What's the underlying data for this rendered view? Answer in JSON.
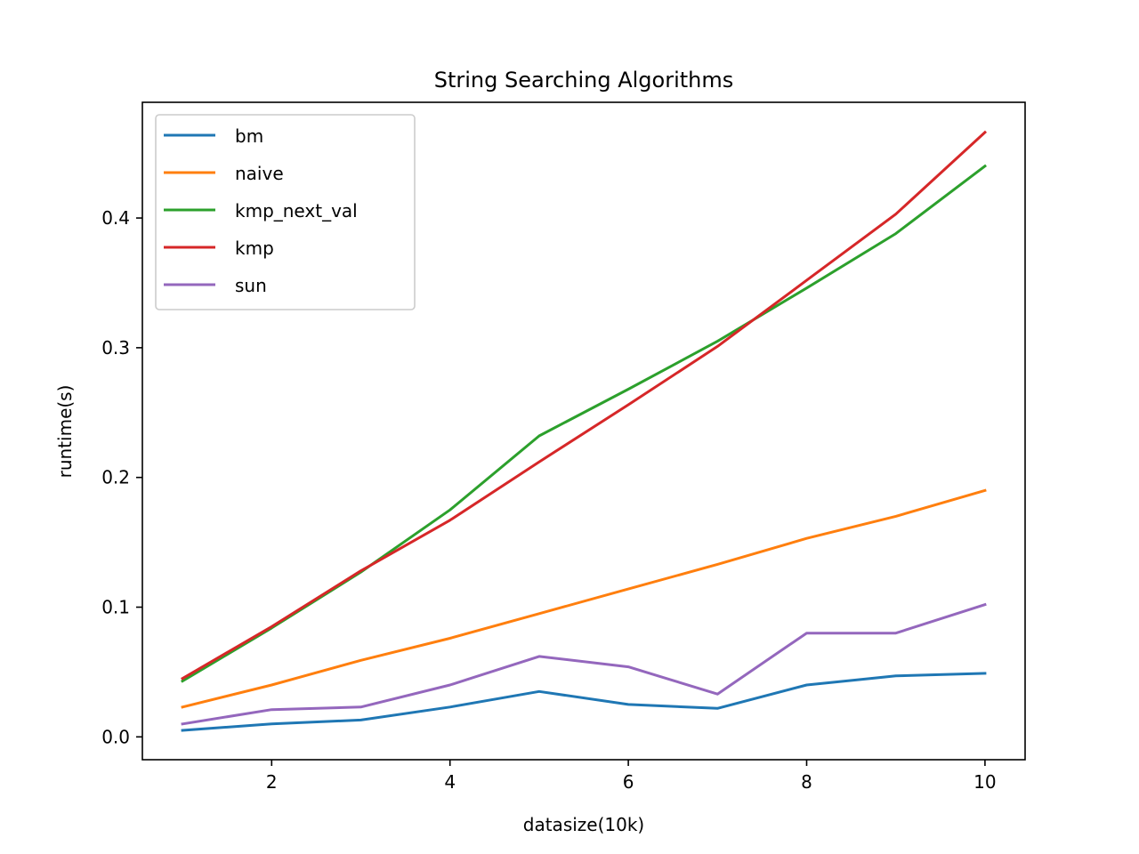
{
  "chart_data": {
    "type": "line",
    "title": "String Searching Algorithms",
    "xlabel": "datasize(10k)",
    "ylabel": "runtime(s)",
    "x": [
      1,
      2,
      3,
      4,
      5,
      6,
      7,
      8,
      9,
      10
    ],
    "xlim": [
      0.55,
      10.45
    ],
    "ylim": [
      -0.0176,
      0.4892
    ],
    "xticks": [
      2,
      4,
      6,
      8,
      10
    ],
    "xtick_labels": [
      "2",
      "4",
      "6",
      "8",
      "10"
    ],
    "yticks": [
      0.0,
      0.1,
      0.2,
      0.3,
      0.4
    ],
    "ytick_labels": [
      "0.0",
      "0.1",
      "0.2",
      "0.3",
      "0.4"
    ],
    "grid": false,
    "legend_position": "upper-left",
    "series": [
      {
        "name": "bm",
        "color": "#1f77b4",
        "values": [
          0.005,
          0.01,
          0.013,
          0.023,
          0.035,
          0.025,
          0.022,
          0.04,
          0.047,
          0.049
        ]
      },
      {
        "name": "naive",
        "color": "#ff7f0e",
        "values": [
          0.023,
          0.04,
          0.059,
          0.076,
          0.095,
          0.114,
          0.133,
          0.153,
          0.17,
          0.19
        ]
      },
      {
        "name": "kmp_next_val",
        "color": "#2ca02c",
        "values": [
          0.043,
          0.084,
          0.127,
          0.175,
          0.232,
          0.268,
          0.305,
          0.346,
          0.388,
          0.44
        ]
      },
      {
        "name": "kmp",
        "color": "#d62728",
        "values": [
          0.045,
          0.085,
          0.128,
          0.167,
          0.212,
          0.256,
          0.301,
          0.352,
          0.403,
          0.466
        ]
      },
      {
        "name": "sun",
        "color": "#9467bd",
        "values": [
          0.01,
          0.021,
          0.023,
          0.04,
          0.062,
          0.054,
          0.033,
          0.08,
          0.08,
          0.102
        ]
      }
    ]
  }
}
